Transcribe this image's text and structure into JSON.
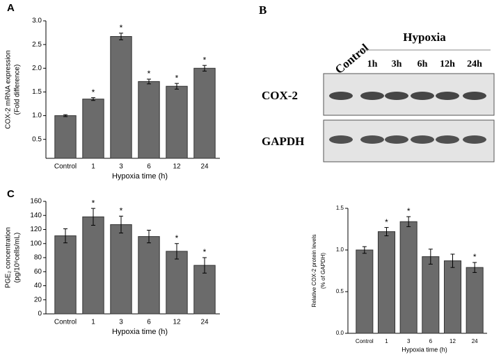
{
  "chart_data": [
    {
      "type": "bar",
      "panel_label": "A",
      "ylabel": [
        "COX-2 mRNA expression",
        "(Fold difference)"
      ],
      "xlabel": "Hypoxia time (h)",
      "categories": [
        "Control",
        "1",
        "3",
        "6",
        "12",
        "24"
      ],
      "values": [
        1.0,
        1.35,
        2.67,
        1.72,
        1.62,
        2.0
      ],
      "errors": [
        0.02,
        0.03,
        0.07,
        0.05,
        0.06,
        0.06
      ],
      "significance": [
        null,
        "*",
        "*",
        "*",
        "*",
        "*"
      ],
      "color": "#6b6b6b",
      "ylim": [
        0.1,
        3.0
      ],
      "yticks": [
        0.5,
        {
          "value": 1.0,
          "label": "1.0"
        },
        1.5,
        {
          "value": 2.0,
          "label": "2.0"
        },
        2.5,
        {
          "value": 3.0,
          "label": "3.0"
        }
      ]
    },
    {
      "type": "bar",
      "panel_label": "C",
      "ylabel": [
        "PGE₂ concentration",
        "(pg/10⁶cells/mL)"
      ],
      "xlabel": "Hypoxia time (h)",
      "categories": [
        "Control",
        "1",
        "3",
        "6",
        "12",
        "24"
      ],
      "values": [
        111,
        138,
        127,
        110,
        89,
        69
      ],
      "errors": [
        10,
        12,
        12,
        9,
        11,
        11
      ],
      "significance": [
        null,
        "*",
        "*",
        null,
        "*",
        "*"
      ],
      "color": "#6b6b6b",
      "ylim": [
        0,
        160
      ],
      "yticks": [
        0,
        20,
        40,
        60,
        80,
        100,
        120,
        140,
        160
      ]
    },
    {
      "type": "bar",
      "ylabel": [
        "Relative COX-2 protein levels",
        "(% of GAPDH)"
      ],
      "xlabel": "Hypoxia time (h)",
      "categories": [
        "Control",
        "1",
        "3",
        "6",
        "12",
        "24"
      ],
      "values": [
        1.0,
        1.22,
        1.34,
        0.92,
        0.87,
        0.79
      ],
      "errors": [
        0.04,
        0.05,
        0.06,
        0.09,
        0.08,
        0.06
      ],
      "significance": [
        null,
        "*",
        "*",
        null,
        null,
        "*"
      ],
      "color": "#6b6b6b",
      "ylim": [
        0,
        1.5
      ],
      "yticks": [
        {
          "value": 0,
          "label": "0.0"
        },
        0.5,
        {
          "value": 1,
          "label": "1.0"
        },
        1.5
      ]
    }
  ],
  "blot": {
    "panel_label": "B",
    "control": "Control",
    "group": "Hypoxia",
    "lanes": [
      "1h",
      "3h",
      "6h",
      "12h",
      "24h"
    ],
    "rows": [
      "COX-2",
      "GAPDH"
    ]
  }
}
